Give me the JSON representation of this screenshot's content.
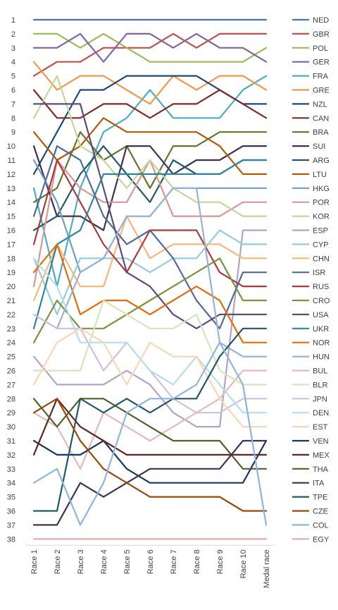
{
  "chart_data": {
    "type": "line",
    "title": "",
    "xlabel": "",
    "ylabel": "",
    "y_reversed": true,
    "ylim": [
      1,
      38
    ],
    "yticks": [
      1,
      2,
      3,
      4,
      5,
      6,
      7,
      8,
      9,
      10,
      11,
      12,
      13,
      14,
      15,
      16,
      17,
      18,
      19,
      20,
      21,
      22,
      23,
      24,
      25,
      26,
      27,
      28,
      29,
      30,
      31,
      32,
      33,
      34,
      35,
      36,
      37,
      38
    ],
    "grid": false,
    "legend_position": "right",
    "categories": [
      "Race 1",
      "Race 2",
      "Race 3",
      "Race 4",
      "Race 5",
      "Race 6",
      "Race 7",
      "Race 8",
      "Race 9",
      "Race 10",
      "Medal race"
    ],
    "series": [
      {
        "name": "NED",
        "color": "#4472c4",
        "values": [
          1,
          1,
          1,
          1,
          1,
          1,
          1,
          1,
          1,
          1,
          1
        ]
      },
      {
        "name": "GBR",
        "color": "#c0504d",
        "values": [
          5,
          4,
          4,
          3,
          3,
          3,
          2,
          3,
          2,
          2,
          2
        ]
      },
      {
        "name": "POL",
        "color": "#9bbb59",
        "values": [
          2,
          2,
          3,
          2,
          3,
          4,
          4,
          4,
          4,
          4,
          3
        ]
      },
      {
        "name": "GER",
        "color": "#8064a2",
        "values": [
          3,
          3,
          2,
          4,
          2,
          2,
          3,
          2,
          3,
          3,
          4
        ]
      },
      {
        "name": "FRA",
        "color": "#4bacc6",
        "values": [
          13,
          20,
          13,
          9,
          8,
          6,
          8,
          8,
          8,
          6,
          5
        ]
      },
      {
        "name": "GRE",
        "color": "#f79646",
        "values": [
          4,
          6,
          5,
          5,
          6,
          7,
          5,
          6,
          5,
          5,
          6
        ]
      },
      {
        "name": "NZL",
        "color": "#1f497d",
        "values": [
          12,
          9,
          6,
          6,
          5,
          5,
          5,
          5,
          6,
          7,
          7
        ]
      },
      {
        "name": "CAN",
        "color": "#7b2c2c",
        "values": [
          6,
          8,
          8,
          7,
          7,
          8,
          7,
          7,
          6,
          7,
          8
        ]
      },
      {
        "name": "BRA",
        "color": "#5f7530",
        "values": [
          14,
          13,
          9,
          11,
          10,
          13,
          10,
          10,
          9,
          9,
          9
        ]
      },
      {
        "name": "SUI",
        "color": "#3f3151",
        "values": [
          10,
          15,
          15,
          16,
          10,
          10,
          12,
          11,
          11,
          10,
          10
        ]
      },
      {
        "name": "ARG",
        "color": "#215968",
        "values": [
          16,
          15,
          12,
          10,
          12,
          14,
          11,
          12,
          12,
          11,
          11
        ]
      },
      {
        "name": "LTU",
        "color": "#b65708",
        "values": [
          9,
          11,
          10,
          8,
          9,
          9,
          9,
          9,
          10,
          12,
          12
        ]
      },
      {
        "name": "HKG",
        "color": "#729aca",
        "values": [
          11,
          14,
          19,
          18,
          15,
          15,
          13,
          13,
          13,
          13,
          13
        ]
      },
      {
        "name": "POR",
        "color": "#d99694",
        "values": [
          20,
          11,
          13,
          14,
          14,
          11,
          15,
          15,
          15,
          14,
          14
        ]
      },
      {
        "name": "KOR",
        "color": "#c3d69b",
        "values": [
          8,
          5,
          10,
          11,
          13,
          11,
          13,
          14,
          14,
          15,
          15
        ]
      },
      {
        "name": "ESP",
        "color": "#b3a2c7",
        "values": [
          25,
          27,
          27,
          27,
          26,
          27,
          29,
          30,
          30,
          16,
          16
        ]
      },
      {
        "name": "CYP",
        "color": "#93cddd",
        "values": [
          18,
          22,
          18,
          18,
          18,
          19,
          18,
          18,
          16,
          17,
          17
        ]
      },
      {
        "name": "CHN",
        "color": "#fab67a",
        "values": [
          21,
          17,
          20,
          20,
          15,
          18,
          17,
          17,
          17,
          18,
          18
        ]
      },
      {
        "name": "ISR",
        "color": "#4f6a9c",
        "values": [
          15,
          10,
          11,
          15,
          17,
          16,
          18,
          21,
          23,
          19,
          19
        ]
      },
      {
        "name": "RUS",
        "color": "#ab3b3a",
        "values": [
          17,
          11,
          14,
          17,
          19,
          16,
          16,
          16,
          19,
          20,
          20
        ]
      },
      {
        "name": "CRO",
        "color": "#77933c",
        "values": [
          24,
          21,
          23,
          23,
          22,
          21,
          20,
          19,
          18,
          21,
          21
        ]
      },
      {
        "name": "USA",
        "color": "#604a7b",
        "values": [
          7,
          7,
          7,
          13,
          19,
          20,
          22,
          23,
          22,
          22,
          22
        ]
      },
      {
        "name": "UKR",
        "color": "#31859c",
        "values": [
          23,
          17,
          16,
          12,
          12,
          12,
          12,
          12,
          12,
          11,
          11
        ]
      },
      {
        "name": "NOR",
        "color": "#e46c0a",
        "values": [
          19,
          17,
          22,
          21,
          21,
          22,
          21,
          20,
          21,
          24,
          24
        ]
      },
      {
        "name": "HUN",
        "color": "#95b3d7",
        "values": [
          22,
          23,
          19,
          18,
          15,
          15,
          13,
          13,
          24,
          25,
          25
        ]
      },
      {
        "name": "BUL",
        "color": "#e6b9b8",
        "values": [
          29,
          30,
          33,
          29,
          30,
          31,
          30,
          29,
          28,
          26,
          26
        ]
      },
      {
        "name": "BLR",
        "color": "#d7e4bd",
        "values": [
          26,
          26,
          26,
          21,
          22,
          23,
          23,
          22,
          26,
          27,
          27
        ]
      },
      {
        "name": "JPN",
        "color": "#ccc1da",
        "values": [
          22,
          23,
          23,
          26,
          24,
          26,
          28,
          29,
          29,
          28,
          28
        ]
      },
      {
        "name": "DEN",
        "color": "#b7dee8",
        "values": [
          18,
          20,
          24,
          24,
          24,
          26,
          27,
          25,
          27,
          29,
          29
        ]
      },
      {
        "name": "EST",
        "color": "#fcd5b5",
        "values": [
          27,
          24,
          23,
          24,
          27,
          24,
          25,
          25,
          28,
          30,
          30
        ]
      },
      {
        "name": "VEN",
        "color": "#17375e",
        "values": [
          31,
          32,
          32,
          31,
          33,
          34,
          34,
          34,
          34,
          34,
          31
        ]
      },
      {
        "name": "MEX",
        "color": "#632423",
        "values": [
          32,
          28,
          30,
          31,
          32,
          32,
          32,
          32,
          32,
          32,
          32
        ]
      },
      {
        "name": "THA",
        "color": "#4f6228",
        "values": [
          28,
          30,
          28,
          28,
          29,
          30,
          31,
          31,
          31,
          33,
          33
        ]
      },
      {
        "name": "ITA",
        "color": "#403152",
        "values": [
          37,
          37,
          34,
          35,
          34,
          33,
          33,
          33,
          33,
          31,
          31
        ]
      },
      {
        "name": "TPE",
        "color": "#205867",
        "values": [
          36,
          36,
          28,
          29,
          28,
          29,
          28,
          28,
          25,
          23,
          23
        ]
      },
      {
        "name": "CZE",
        "color": "#984807",
        "values": [
          29,
          28,
          31,
          33,
          34,
          35,
          35,
          35,
          35,
          36,
          36
        ]
      },
      {
        "name": "COL",
        "color": "#8eb4e3",
        "values": [
          34,
          33,
          37,
          34,
          29,
          28,
          28,
          27,
          24,
          27,
          37
        ]
      },
      {
        "name": "EGY",
        "color": "#e7a7a6",
        "values": [
          38,
          38,
          38,
          38,
          38,
          38,
          38,
          38,
          38,
          38,
          38
        ]
      }
    ]
  }
}
